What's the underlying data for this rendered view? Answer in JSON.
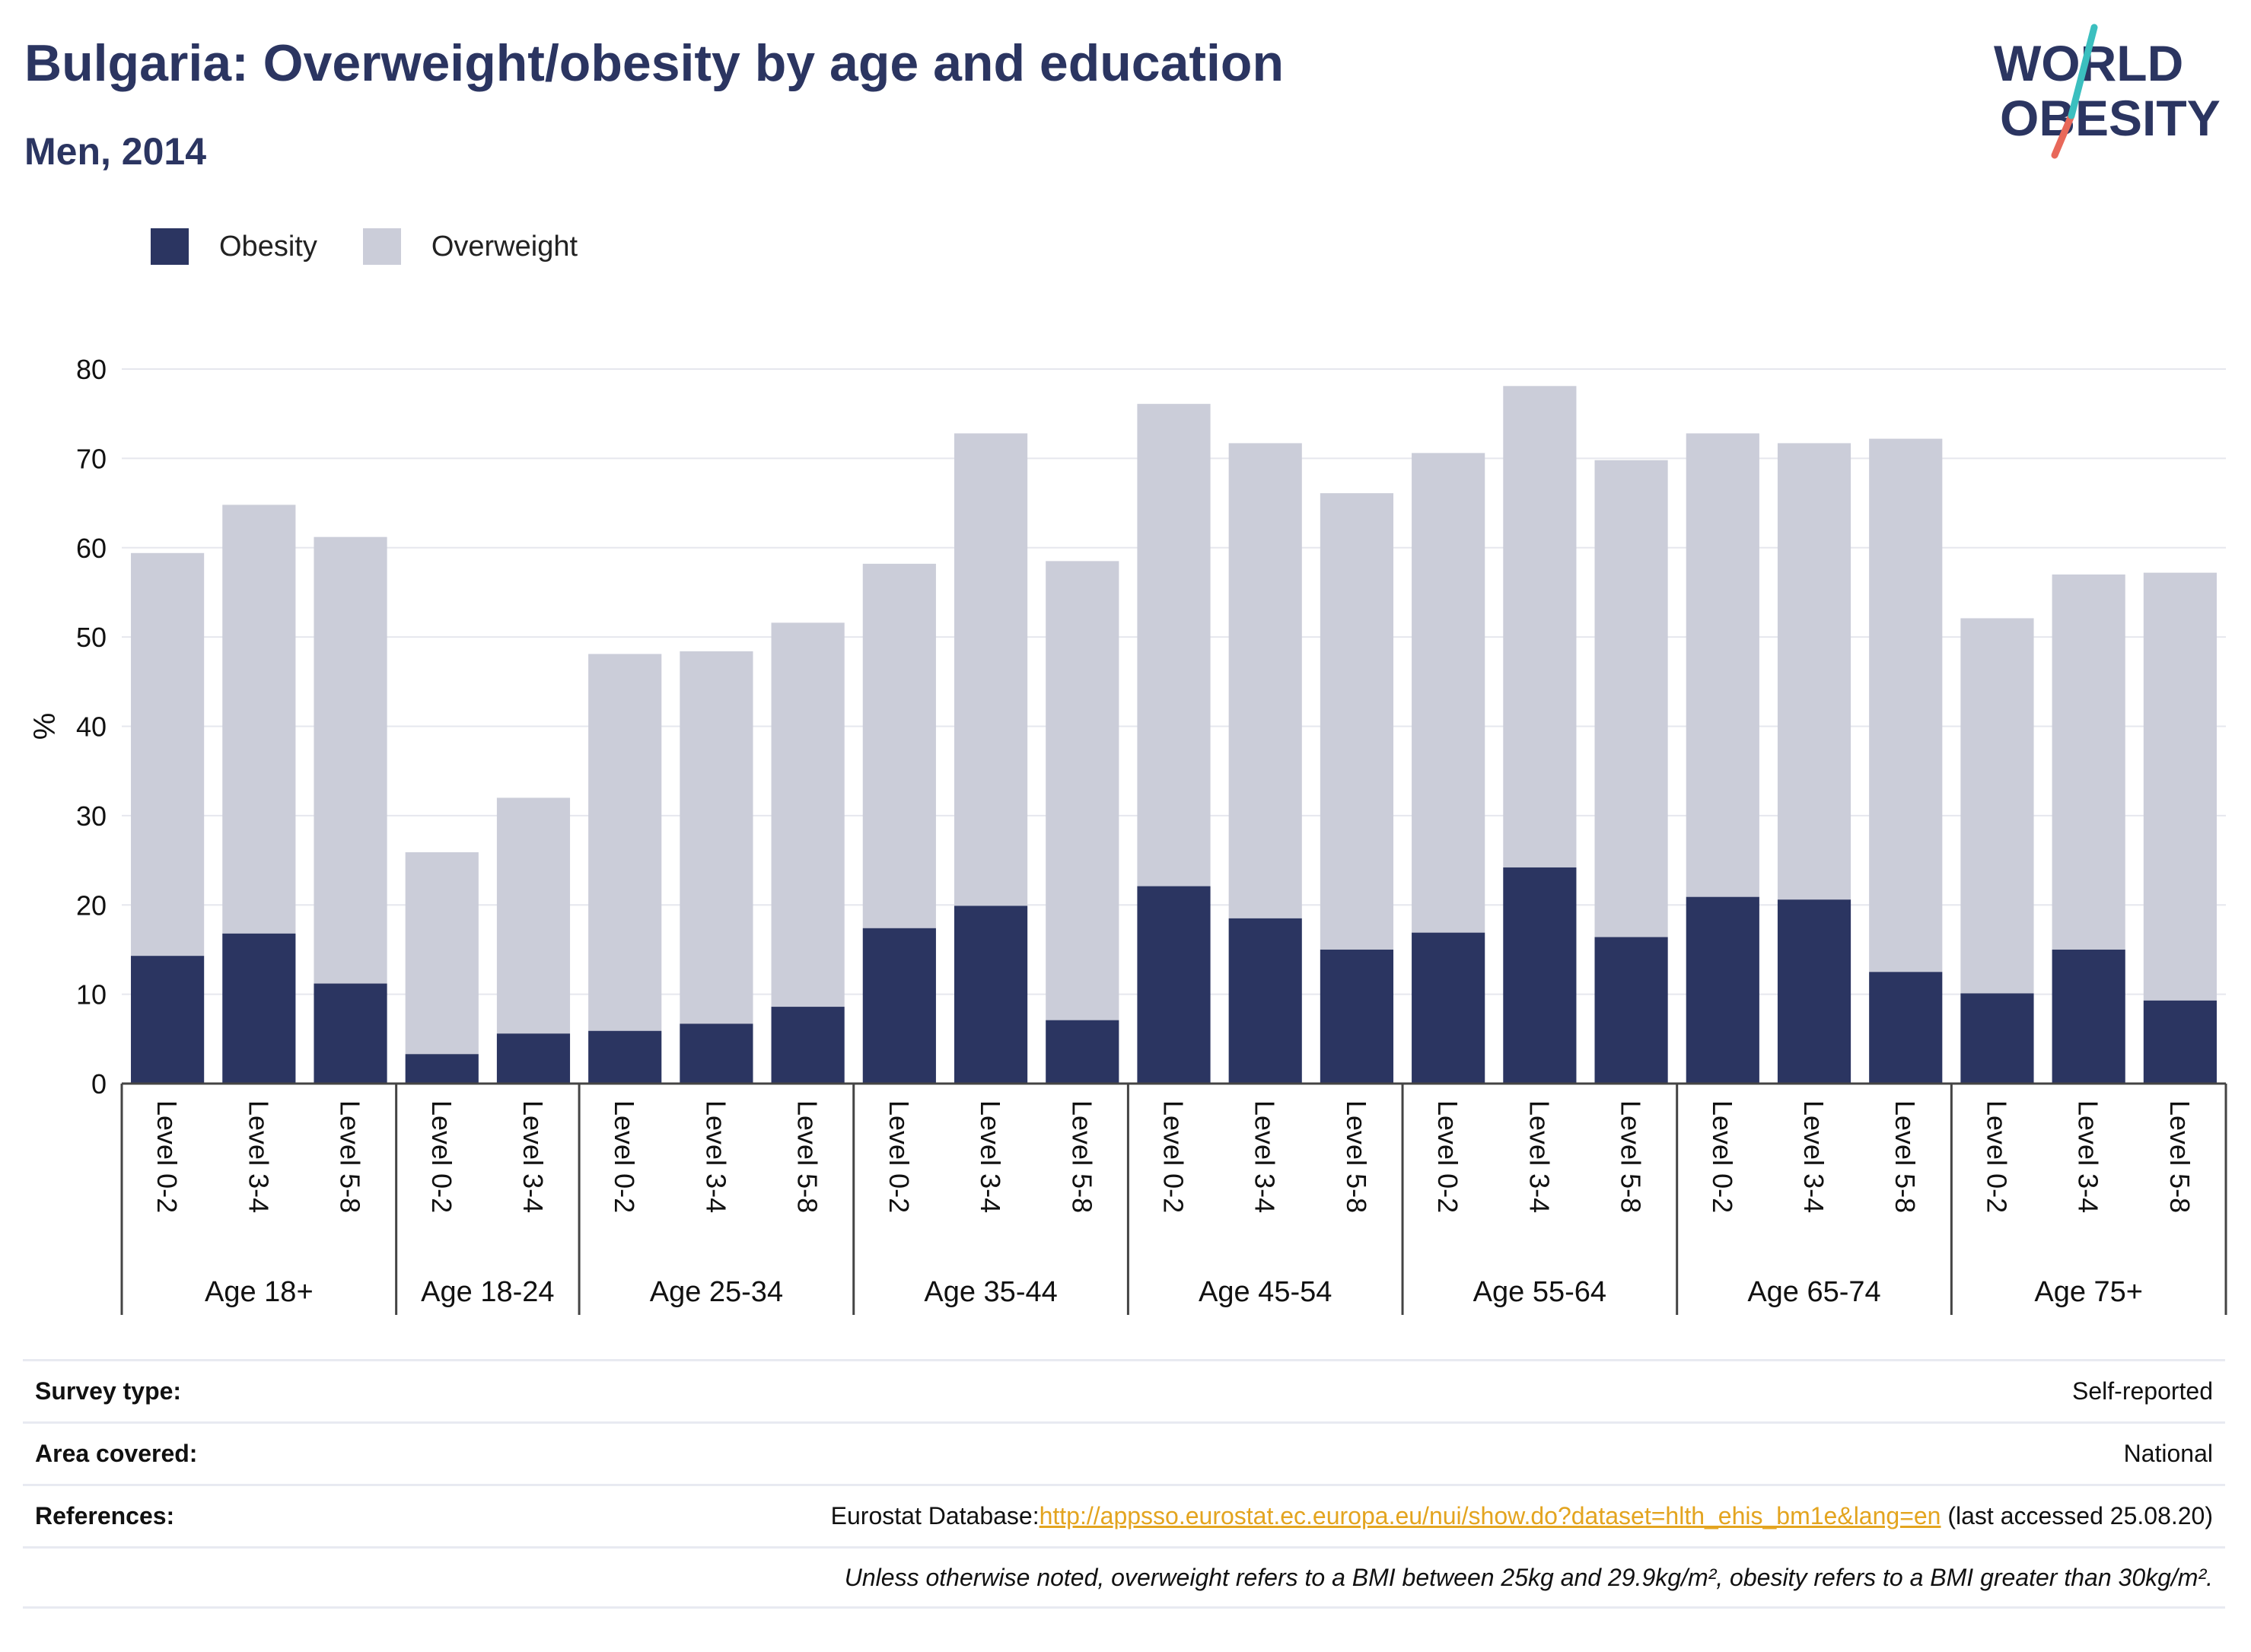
{
  "header": {
    "title": "Bulgaria: Overweight/obesity by age and education",
    "subtitle": "Men, 2014"
  },
  "logo": {
    "line1": "WORLD",
    "line2": "OBESITY"
  },
  "colors": {
    "obesity": "#2b3561",
    "overweight": "#cbcdd9",
    "title": "#2b3561",
    "link": "#e3a41f",
    "logo_slash_teal": "#3bbfbf",
    "logo_slash_red": "#e8685a"
  },
  "legend": [
    {
      "label": "Obesity",
      "color": "#2b3561"
    },
    {
      "label": "Overweight",
      "color": "#cbcdd9"
    }
  ],
  "chart_data": {
    "type": "bar",
    "stacked": true,
    "ylabel": "%",
    "ylim": [
      0,
      80
    ],
    "yticks": [
      0,
      10,
      20,
      30,
      40,
      50,
      60,
      70,
      80
    ],
    "grid": true,
    "legend_position": "top-left",
    "groups": [
      {
        "label": "Age 18+",
        "categories": [
          "Level 0-2",
          "Level 3-4",
          "Level 5-8"
        ],
        "obesity": [
          14.3,
          16.8,
          11.2
        ],
        "total": [
          59.4,
          64.8,
          61.2
        ]
      },
      {
        "label": "Age 18-24",
        "categories": [
          "Level 0-2",
          "Level 3-4"
        ],
        "obesity": [
          3.3,
          5.6
        ],
        "total": [
          25.9,
          32.0
        ]
      },
      {
        "label": "Age 25-34",
        "categories": [
          "Level 0-2",
          "Level 3-4",
          "Level 5-8"
        ],
        "obesity": [
          5.9,
          6.7,
          8.6
        ],
        "total": [
          48.1,
          48.4,
          51.6
        ]
      },
      {
        "label": "Age 35-44",
        "categories": [
          "Level 0-2",
          "Level 3-4",
          "Level 5-8"
        ],
        "obesity": [
          17.4,
          19.9,
          7.1
        ],
        "total": [
          58.2,
          72.8,
          58.5
        ]
      },
      {
        "label": "Age 45-54",
        "categories": [
          "Level 0-2",
          "Level 3-4",
          "Level 5-8"
        ],
        "obesity": [
          22.1,
          18.5,
          15.0
        ],
        "total": [
          76.1,
          71.7,
          66.1
        ]
      },
      {
        "label": "Age 55-64",
        "categories": [
          "Level 0-2",
          "Level 3-4",
          "Level 5-8"
        ],
        "obesity": [
          16.9,
          24.2,
          16.4
        ],
        "total": [
          70.6,
          78.1,
          69.8
        ]
      },
      {
        "label": "Age 65-74",
        "categories": [
          "Level 0-2",
          "Level 3-4",
          "Level 5-8"
        ],
        "obesity": [
          20.9,
          20.6,
          12.5
        ],
        "total": [
          72.8,
          71.7,
          72.2
        ]
      },
      {
        "label": "Age 75+",
        "categories": [
          "Level 0-2",
          "Level 3-4",
          "Level 5-8"
        ],
        "obesity": [
          10.1,
          15.0,
          9.3
        ],
        "total": [
          52.1,
          57.0,
          57.2
        ]
      }
    ]
  },
  "info": {
    "survey_type_label": "Survey type:",
    "survey_type_value": "Self-reported",
    "area_label": "Area covered:",
    "area_value": "National",
    "references_label": "References:",
    "references_prefix": "Eurostat Database:",
    "references_link": "http://appsso.eurostat.ec.europa.eu/nui/show.do?dataset=hlth_ehis_bm1e&lang=en",
    "references_suffix": " (last accessed 25.08.20)",
    "note": "Unless otherwise noted, overweight refers to a BMI between 25kg and 29.9kg/m², obesity refers to a BMI greater than 30kg/m²."
  }
}
